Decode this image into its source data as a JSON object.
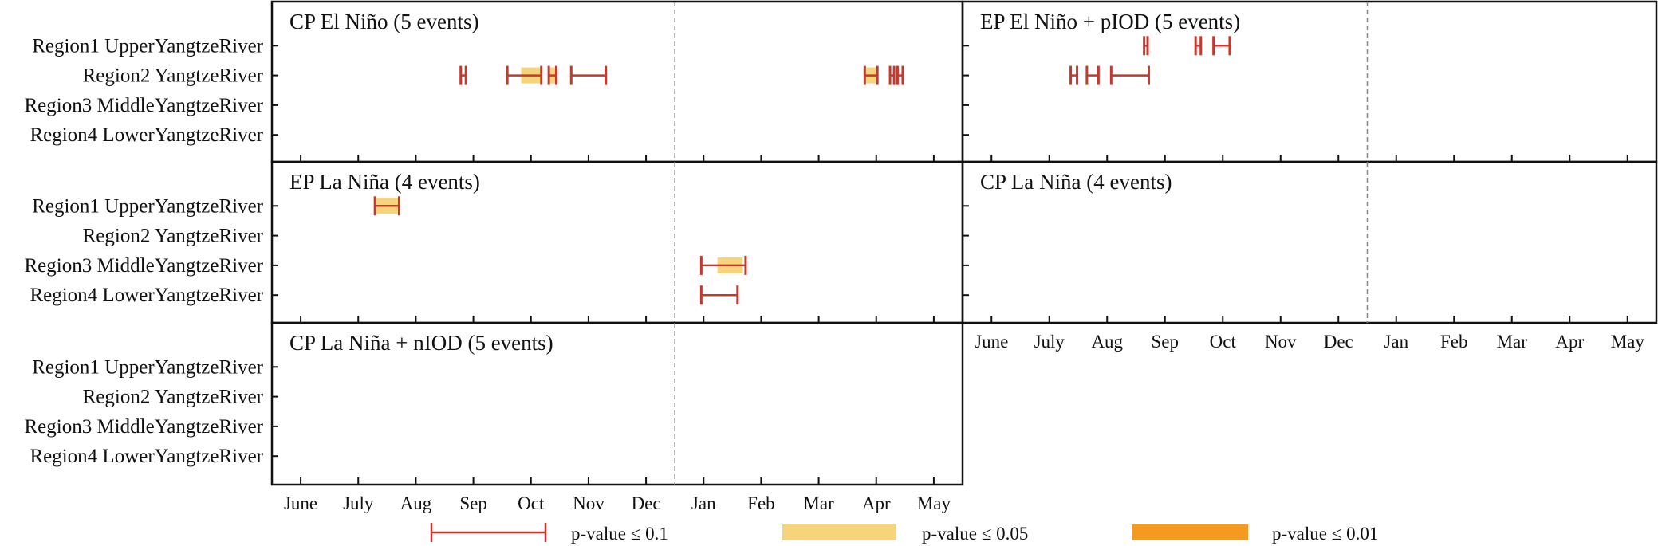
{
  "chart_data": [
    {
      "type": "interval",
      "title": "CP El Niño (5 events)",
      "rows": [
        "Region1 UpperYangtzeRiver",
        "Region2 YangtzeRiver",
        "Region3 MiddleYangtzeRiver",
        "Region4 LowerYangtzeRiver"
      ],
      "show_row_labels": true,
      "show_month_labels": false,
      "intervals": [
        {
          "row": 2,
          "start": 2.78,
          "end": 2.87,
          "p": "0.1"
        },
        {
          "row": 2,
          "start": 3.59,
          "end": 4.18,
          "p": "0.1"
        },
        {
          "row": 2,
          "start": 4.31,
          "end": 4.44,
          "p": "0.1"
        },
        {
          "row": 2,
          "start": 4.7,
          "end": 5.3,
          "p": "0.1"
        },
        {
          "row": 2,
          "start": 9.8,
          "end": 10.02,
          "p": "0.1"
        },
        {
          "row": 2,
          "start": 10.24,
          "end": 10.31,
          "p": "0.1"
        },
        {
          "row": 2,
          "start": 10.37,
          "end": 10.46,
          "p": "0.1"
        }
      ],
      "shaded": [
        {
          "row": 2,
          "start": 3.83,
          "end": 4.16,
          "p": "0.05"
        },
        {
          "row": 2,
          "start": 4.31,
          "end": 4.44,
          "p": "0.05"
        },
        {
          "row": 2,
          "start": 9.82,
          "end": 10.0,
          "p": "0.05"
        }
      ]
    },
    {
      "type": "interval",
      "title": "EP El Niño + pIOD (5 events)",
      "rows": [
        "Region1 UpperYangtzeRiver",
        "Region2 YangtzeRiver",
        "Region3 MiddleYangtzeRiver",
        "Region4 LowerYangtzeRiver"
      ],
      "show_row_labels": false,
      "show_month_labels": false,
      "intervals": [
        {
          "row": 1,
          "start": 2.64,
          "end": 2.7,
          "p": "0.1"
        },
        {
          "row": 1,
          "start": 3.53,
          "end": 3.62,
          "p": "0.1"
        },
        {
          "row": 1,
          "start": 3.84,
          "end": 4.12,
          "p": "0.1"
        },
        {
          "row": 2,
          "start": 1.37,
          "end": 1.48,
          "p": "0.1"
        },
        {
          "row": 2,
          "start": 1.65,
          "end": 1.85,
          "p": "0.1"
        },
        {
          "row": 2,
          "start": 2.07,
          "end": 2.72,
          "p": "0.1"
        }
      ],
      "shaded": []
    },
    {
      "type": "interval",
      "title": "EP La Niña (4 events)",
      "rows": [
        "Region1 UpperYangtzeRiver",
        "Region2 YangtzeRiver",
        "Region3 MiddleYangtzeRiver",
        "Region4 LowerYangtzeRiver"
      ],
      "show_row_labels": true,
      "show_month_labels": false,
      "intervals": [
        {
          "row": 1,
          "start": 1.29,
          "end": 1.71,
          "p": "0.1"
        },
        {
          "row": 3,
          "start": 6.96,
          "end": 7.73,
          "p": "0.1"
        },
        {
          "row": 4,
          "start": 6.96,
          "end": 7.59,
          "p": "0.1"
        }
      ],
      "shaded": [
        {
          "row": 1,
          "start": 1.31,
          "end": 1.69,
          "p": "0.05"
        },
        {
          "row": 3,
          "start": 7.24,
          "end": 7.68,
          "p": "0.05"
        }
      ]
    },
    {
      "type": "interval",
      "title": "CP La Niña (4 events)",
      "rows": [
        "Region1 UpperYangtzeRiver",
        "Region2 YangtzeRiver",
        "Region3 MiddleYangtzeRiver",
        "Region4 LowerYangtzeRiver"
      ],
      "show_row_labels": false,
      "show_month_labels": true,
      "intervals": [],
      "shaded": []
    },
    {
      "type": "interval",
      "title": "CP La Niña + nIOD (5 events)",
      "rows": [
        "Region1 UpperYangtzeRiver",
        "Region2 YangtzeRiver",
        "Region3 MiddleYangtzeRiver",
        "Region4 LowerYangtzeRiver"
      ],
      "show_row_labels": true,
      "show_month_labels": true,
      "intervals": [],
      "shaded": []
    }
  ],
  "x_ticks": [
    "June",
    "July",
    "Aug",
    "Sep",
    "Oct",
    "Nov",
    "Dec",
    "Jan",
    "Feb",
    "Mar",
    "Apr",
    "May"
  ],
  "xlim": [
    -0.5,
    11.5
  ],
  "year_boundary": 6.5,
  "legend": [
    {
      "label": "p-value ≤ 0.1",
      "kind": "line",
      "color": "#c8372d"
    },
    {
      "label": "p-value ≤ 0.05",
      "kind": "box",
      "color": "#f6d47c"
    },
    {
      "label": "p-value ≤ 0.01",
      "kind": "box",
      "color": "#f39a1f"
    }
  ],
  "colors": {
    "line": "#c8372d",
    "p05": "#f6d47c",
    "p01": "#f39a1f",
    "boundary": "#888888"
  }
}
